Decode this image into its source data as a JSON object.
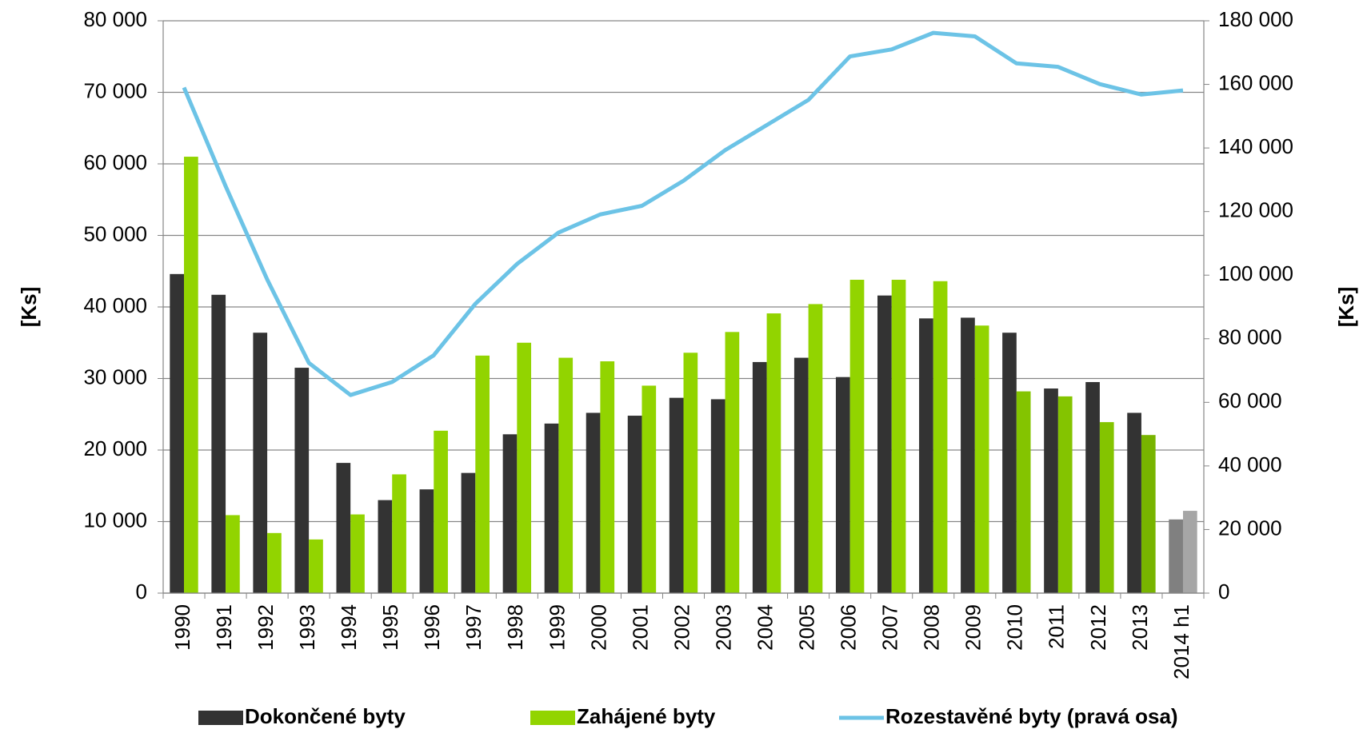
{
  "chart_data": {
    "type": "bar-line",
    "categories": [
      "1990",
      "1991",
      "1992",
      "1993",
      "1994",
      "1995",
      "1996",
      "1997",
      "1998",
      "1999",
      "2000",
      "2001",
      "2002",
      "2003",
      "2004",
      "2005",
      "2006",
      "2007",
      "2008",
      "2009",
      "2010",
      "2011",
      "2012",
      "2013",
      "2014 h1"
    ],
    "series": [
      {
        "name": "Dokončené byty",
        "type": "bar",
        "color": "#333333",
        "colors": [
          "#333333",
          "#333333",
          "#333333",
          "#333333",
          "#333333",
          "#333333",
          "#333333",
          "#333333",
          "#333333",
          "#333333",
          "#333333",
          "#333333",
          "#333333",
          "#333333",
          "#333333",
          "#333333",
          "#333333",
          "#333333",
          "#333333",
          "#333333",
          "#333333",
          "#333333",
          "#333333",
          "#333333",
          "#808080"
        ],
        "values": [
          44600,
          41700,
          36400,
          31500,
          18200,
          13000,
          14500,
          16800,
          22200,
          23700,
          25200,
          24800,
          27300,
          27100,
          32300,
          32900,
          30200,
          41600,
          38400,
          38500,
          36400,
          28600,
          29500,
          25200,
          10300
        ]
      },
      {
        "name": "Zahájené byty",
        "type": "bar",
        "color": "#92d400",
        "colors": [
          "#92d400",
          "#92d400",
          "#92d400",
          "#92d400",
          "#92d400",
          "#92d400",
          "#92d400",
          "#92d400",
          "#92d400",
          "#92d400",
          "#92d400",
          "#92d400",
          "#92d400",
          "#92d400",
          "#92d400",
          "#92d400",
          "#92d400",
          "#92d400",
          "#92d400",
          "#92d400",
          "#84c400",
          "#84c400",
          "#84c400",
          "#78b400",
          "#a6a6a6"
        ],
        "values": [
          61000,
          10900,
          8400,
          7500,
          11000,
          16600,
          22700,
          33200,
          35000,
          32900,
          32400,
          29000,
          33600,
          36500,
          39100,
          40400,
          43800,
          43800,
          43600,
          37400,
          28200,
          27500,
          23900,
          22100,
          11500
        ]
      },
      {
        "name": "Rozestavěné byty (pravá osa)",
        "type": "line",
        "axis": "y2",
        "color": "#6cc3e6",
        "values": [
          159000,
          128000,
          98600,
          72400,
          62300,
          66400,
          74800,
          91000,
          103500,
          113400,
          119100,
          121800,
          129700,
          139300,
          147200,
          155100,
          168800,
          171000,
          176200,
          175100,
          166600,
          165500,
          160100,
          156800,
          158100
        ]
      }
    ],
    "y_label": "[Ks]",
    "y2_label": "[Ks]",
    "ylim": [
      0,
      80000
    ],
    "yticks": [
      0,
      {
        "value": 10000,
        "label": "10 000"
      },
      {
        "value": 20000,
        "label": "20 000"
      },
      {
        "value": 30000,
        "label": "30 000"
      },
      {
        "value": 40000,
        "label": "40 000"
      },
      {
        "value": 50000,
        "label": "50 000"
      },
      {
        "value": 60000,
        "label": "60 000"
      },
      {
        "value": 70000,
        "label": "70 000"
      },
      {
        "value": 80000,
        "label": "80 000"
      }
    ],
    "y2lim": [
      0,
      180000
    ],
    "y2ticks": [
      0,
      {
        "value": 20000,
        "label": "20 000"
      },
      {
        "value": 40000,
        "label": "40 000"
      },
      {
        "value": 60000,
        "label": "60 000"
      },
      {
        "value": 80000,
        "label": "80 000"
      },
      {
        "value": 100000,
        "label": "100 000"
      },
      {
        "value": 120000,
        "label": "120 000"
      },
      {
        "value": 140000,
        "label": "140 000"
      },
      {
        "value": 160000,
        "label": "160 000"
      },
      {
        "value": 180000,
        "label": "180 000"
      }
    ],
    "grid": true,
    "legend": "bottom"
  }
}
